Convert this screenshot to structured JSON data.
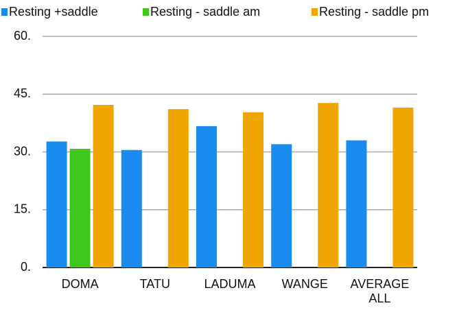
{
  "chart_data": {
    "type": "bar",
    "categories": [
      "DOMA",
      "TATU",
      "LADUMA",
      "WANGE",
      "AVERAGE ALL"
    ],
    "series": [
      {
        "name": "Resting +saddle",
        "color": "#1a8cf0",
        "values": [
          32.7,
          30.5,
          36.7,
          32,
          33
        ]
      },
      {
        "name": "Resting - saddle  am",
        "color": "#3ec81e",
        "values": [
          30.8,
          null,
          null,
          null,
          null
        ]
      },
      {
        "name": "Resting - saddle pm",
        "color": "#f0a500",
        "values": [
          42.2,
          41.1,
          40.3,
          42.7,
          41.5
        ]
      }
    ],
    "ylim": [
      0,
      60
    ],
    "yticks": [
      {
        "value": 0,
        "label": "0."
      },
      {
        "value": 15,
        "label": "15."
      },
      {
        "value": 30,
        "label": "30."
      },
      {
        "value": 45,
        "label": "45."
      },
      {
        "value": 60,
        "label": "60."
      }
    ],
    "grid": true,
    "legend": "top"
  }
}
